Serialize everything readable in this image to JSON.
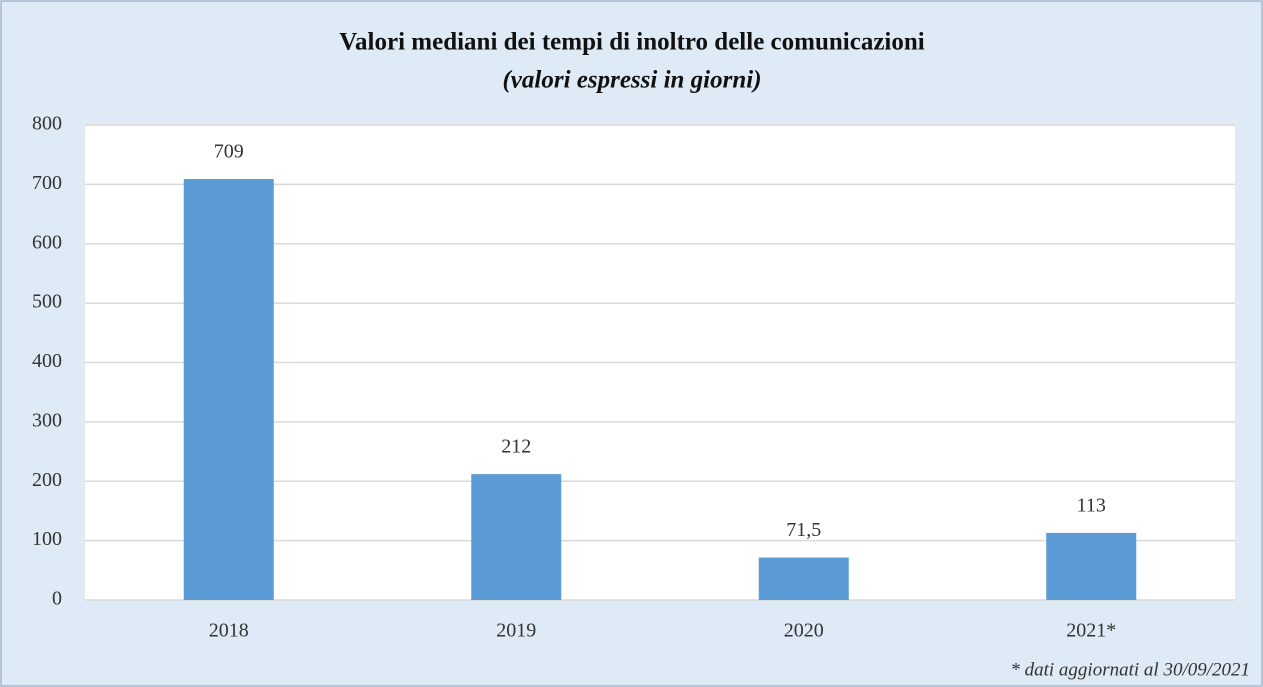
{
  "chart_data": {
    "type": "bar",
    "title": "Valori mediani dei tempi di inoltro delle comunicazioni",
    "subtitle": "(valori espressi in giorni)",
    "categories": [
      "2018",
      "2019",
      "2020",
      "2021*"
    ],
    "values": [
      709,
      212,
      71.5,
      113
    ],
    "value_labels": [
      "709",
      "212",
      "71,5",
      "113"
    ],
    "color": "#5b9bd5",
    "ylim": [
      0,
      800
    ],
    "yticks": [
      0,
      100,
      200,
      300,
      400,
      500,
      600,
      700,
      800
    ],
    "grid": true,
    "annotation": "* dati aggiornati al 30/09/2021"
  }
}
